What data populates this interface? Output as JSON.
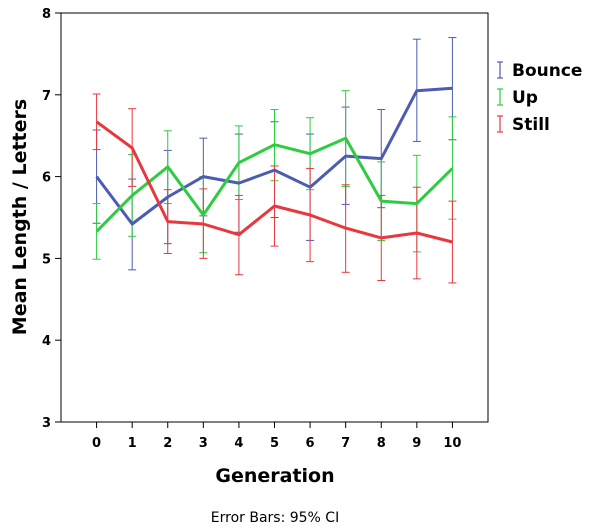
{
  "chart_data": {
    "type": "line",
    "xlabel": "Generation",
    "ylabel": "Mean Length / Letters",
    "x": [
      0,
      1,
      2,
      3,
      4,
      5,
      6,
      7,
      8,
      9,
      10
    ],
    "xlim": [
      -1,
      11
    ],
    "ylim": [
      3,
      8
    ],
    "yticks": [
      3,
      4,
      5,
      6,
      7,
      8
    ],
    "grid": false,
    "legend": "right",
    "footnote": "Error Bars: 95% CI",
    "series": [
      {
        "name": "Bounce",
        "color": "#4c5cb0",
        "values": [
          6.0,
          5.42,
          5.75,
          6.0,
          5.92,
          6.08,
          5.87,
          6.25,
          6.22,
          7.05,
          7.08
        ],
        "lower": [
          5.43,
          4.86,
          5.18,
          5.52,
          5.32,
          5.5,
          5.22,
          5.66,
          5.62,
          6.43,
          6.45
        ],
        "upper": [
          6.57,
          5.97,
          6.32,
          6.47,
          6.52,
          6.67,
          6.52,
          6.85,
          6.82,
          7.68,
          7.7
        ]
      },
      {
        "name": "Up",
        "color": "#2ecc40",
        "values": [
          5.33,
          5.77,
          6.12,
          5.53,
          6.17,
          6.39,
          6.28,
          6.47,
          5.7,
          5.67,
          6.1
        ],
        "lower": [
          4.99,
          5.27,
          5.67,
          5.07,
          5.72,
          5.95,
          5.84,
          5.88,
          5.22,
          5.08,
          5.48
        ],
        "upper": [
          5.67,
          6.27,
          6.56,
          6.0,
          6.62,
          6.82,
          6.72,
          7.05,
          6.18,
          6.26,
          6.73
        ]
      },
      {
        "name": "Still",
        "color": "#e8373d",
        "values": [
          6.67,
          6.35,
          5.45,
          5.42,
          5.29,
          5.64,
          5.53,
          5.37,
          5.25,
          5.31,
          5.2
        ],
        "lower": [
          6.33,
          5.88,
          5.06,
          5.0,
          4.8,
          5.15,
          4.96,
          4.83,
          4.73,
          4.75,
          4.7
        ],
        "upper": [
          7.01,
          6.83,
          5.84,
          5.85,
          5.77,
          6.13,
          6.1,
          5.9,
          5.77,
          5.87,
          5.7
        ]
      }
    ]
  }
}
